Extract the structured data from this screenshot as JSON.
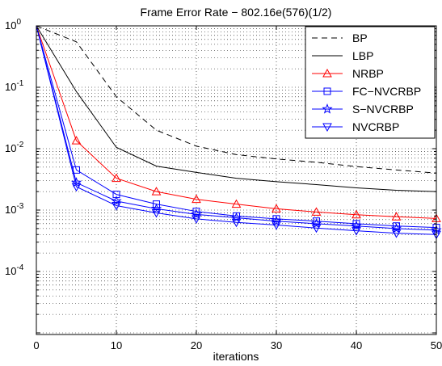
{
  "chart_data": {
    "type": "line",
    "title": "Frame Error Rate − 802.16e(576)(1/2)",
    "xlabel": "iterations",
    "ylabel": "",
    "xlim": [
      0,
      50
    ],
    "ylim": [
      1e-05,
      1
    ],
    "yscale": "log",
    "grid": true,
    "legend_position": "top-right",
    "x_ticks": [
      "0",
      "10",
      "20",
      "30",
      "40",
      "50"
    ],
    "y_ticks": [
      {
        "base": "10",
        "exp": "0"
      },
      {
        "base": "10",
        "exp": "-1"
      },
      {
        "base": "10",
        "exp": "-2"
      },
      {
        "base": "10",
        "exp": "-3"
      },
      {
        "base": "10",
        "exp": "-4"
      }
    ],
    "series": [
      {
        "name": "BP",
        "color": "#000000",
        "dash": "dashed",
        "marker": "none",
        "x": [
          0,
          5,
          10,
          15,
          20,
          25,
          30,
          35,
          40,
          45,
          50
        ],
        "y": [
          1.0,
          0.55,
          0.07,
          0.02,
          0.011,
          0.008,
          0.0068,
          0.006,
          0.0051,
          0.0045,
          0.004
        ]
      },
      {
        "name": "LBP",
        "color": "#000000",
        "dash": "solid",
        "marker": "none",
        "x": [
          0,
          5,
          10,
          15,
          20,
          25,
          30,
          35,
          40,
          45,
          50
        ],
        "y": [
          1.0,
          0.085,
          0.0105,
          0.0052,
          0.0041,
          0.0033,
          0.0029,
          0.0026,
          0.0023,
          0.0021,
          0.002
        ]
      },
      {
        "name": "NRBP",
        "color": "#ff0000",
        "dash": "solid",
        "marker": "triangle-up",
        "x": [
          0,
          5,
          10,
          15,
          20,
          25,
          30,
          35,
          40,
          45,
          50
        ],
        "y": [
          1.0,
          0.0135,
          0.0033,
          0.002,
          0.0015,
          0.00125,
          0.00105,
          0.00093,
          0.00084,
          0.00078,
          0.00073
        ]
      },
      {
        "name": "FC−NVCRBP",
        "color": "#0000ff",
        "dash": "solid",
        "marker": "square",
        "x": [
          0,
          5,
          10,
          15,
          20,
          25,
          30,
          35,
          40,
          45,
          50
        ],
        "y": [
          1.0,
          0.0045,
          0.0018,
          0.00125,
          0.00095,
          0.0008,
          0.00072,
          0.00066,
          0.0006,
          0.00055,
          0.00052
        ]
      },
      {
        "name": "S−NVCRBP",
        "color": "#0000ff",
        "dash": "solid",
        "marker": "star",
        "x": [
          0,
          5,
          10,
          15,
          20,
          25,
          30,
          35,
          40,
          45,
          50
        ],
        "y": [
          1.0,
          0.0028,
          0.0014,
          0.00105,
          0.00085,
          0.00075,
          0.00066,
          0.0006,
          0.00055,
          0.0005,
          0.00047
        ]
      },
      {
        "name": "NVCRBP",
        "color": "#0000ff",
        "dash": "solid",
        "marker": "triangle-down",
        "x": [
          0,
          5,
          10,
          15,
          20,
          25,
          30,
          35,
          40,
          45,
          50
        ],
        "y": [
          1.0,
          0.0024,
          0.00118,
          0.0009,
          0.00072,
          0.00063,
          0.00057,
          0.00051,
          0.00046,
          0.00042,
          0.0004
        ]
      }
    ]
  }
}
